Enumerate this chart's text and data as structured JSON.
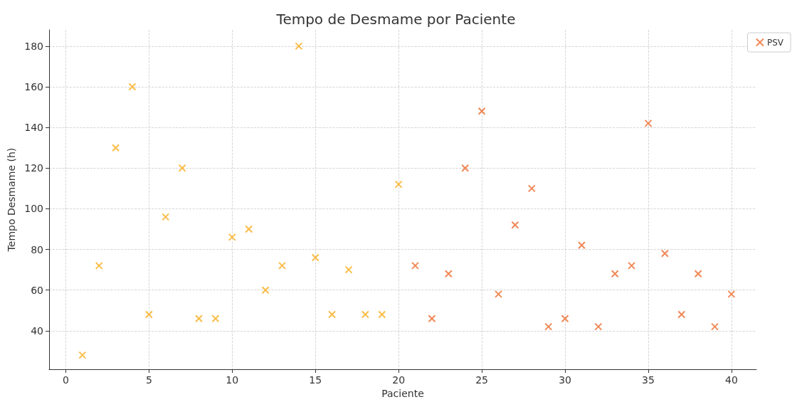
{
  "chart_data": {
    "type": "scatter",
    "title": "Tempo de Desmame por Paciente",
    "xlabel": "Paciente",
    "ylabel": "Tempo Desmame (h)",
    "series": [
      {
        "color": "#f9ac1b",
        "x": [
          1,
          2,
          3,
          4,
          5,
          6,
          7,
          8,
          9,
          10,
          11,
          12,
          13,
          14,
          15,
          16,
          17,
          18,
          19,
          20
        ],
        "values": [
          28,
          72,
          130,
          160,
          48,
          96,
          120,
          46,
          46,
          86,
          90,
          60,
          72,
          180,
          76,
          48,
          70,
          48,
          48,
          112
        ]
      },
      {
        "name": "PSV",
        "color": "#ee6a2c",
        "x": [
          21,
          22,
          23,
          24,
          25,
          26,
          27,
          28,
          29,
          30,
          31,
          32,
          33,
          34,
          35,
          36,
          37,
          38,
          39,
          40
        ],
        "values": [
          72,
          46,
          68,
          120,
          148,
          58,
          92,
          110,
          42,
          46,
          82,
          42,
          68,
          72,
          142,
          78,
          48,
          68,
          42,
          58
        ]
      }
    ],
    "xlim": [
      -1,
      41.5
    ],
    "xticks": [
      0,
      5,
      10,
      15,
      20,
      25,
      30,
      35,
      40
    ],
    "ylim": [
      21,
      188
    ],
    "yticks": [
      40,
      60,
      80,
      100,
      120,
      140,
      160,
      180
    ],
    "grid": true,
    "legend": "top right",
    "marker": "cross"
  }
}
